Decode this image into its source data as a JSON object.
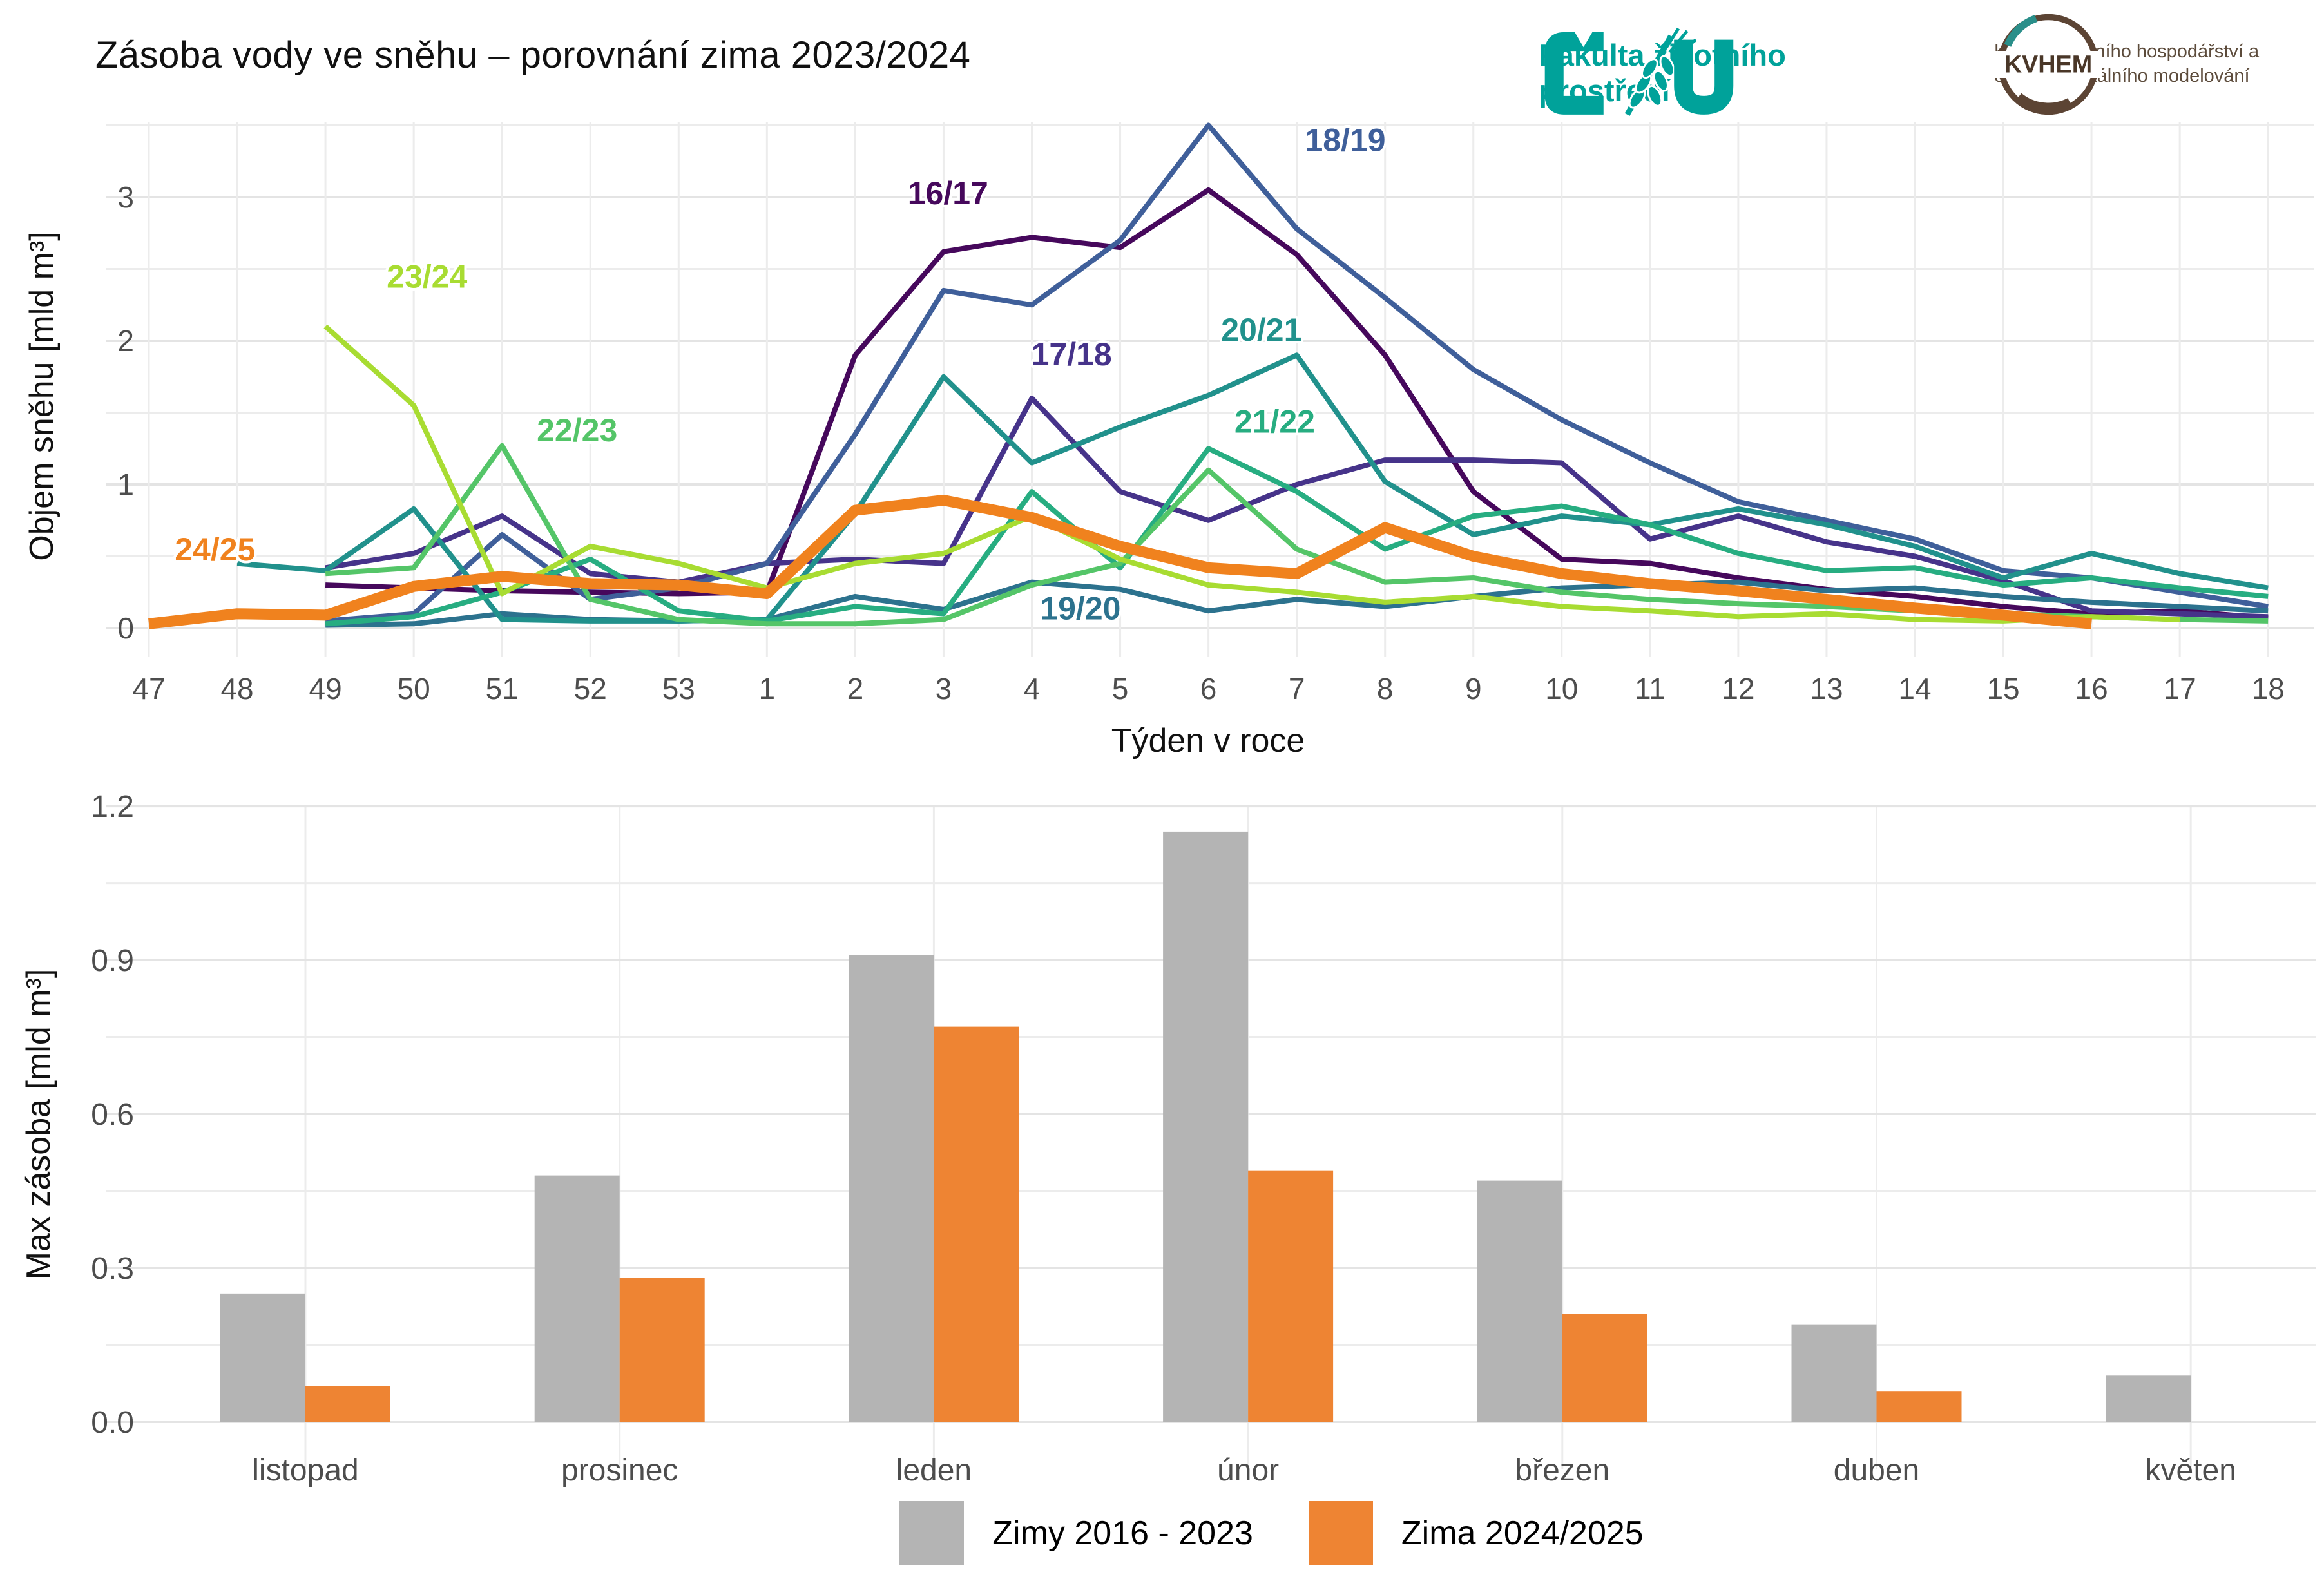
{
  "title": "Zásoba vody ve sněhu – porovnání zima 2023/2024",
  "header": {
    "czu": {
      "faculty": "Fakulta životního prostředí"
    },
    "kvhem": {
      "abbr": "KVHEM",
      "department": "Katedra vodního hospodářství a environmentálního modelování"
    }
  },
  "colors": {
    "teal_brand": "#00A29A",
    "brown": "#5C4B3B",
    "grid_major": "#E4E4E4",
    "grid_minor": "#ECECEC",
    "tick_text": "#4D4D4D",
    "bar_gray": "#B4B4B4",
    "bar_orange": "#EE8433"
  },
  "chart_data": [
    {
      "type": "line",
      "title": "Zásoba vody ve sněhu – porovnání zima 2023/2024",
      "xlabel": "Týden v roce",
      "ylabel": "Objem sněhu [mld m³]",
      "x_ticks": [
        "47",
        "48",
        "49",
        "50",
        "51",
        "52",
        "53",
        "1",
        "2",
        "3",
        "4",
        "5",
        "6",
        "7",
        "8",
        "9",
        "10",
        "11",
        "12",
        "13",
        "14",
        "15",
        "16",
        "17",
        "18"
      ],
      "y_ticks": [
        0,
        1,
        2,
        3
      ],
      "ylim": [
        0,
        3.6
      ],
      "grid": true,
      "series": [
        {
          "name": "16/17",
          "color": "#46085C",
          "width": 8,
          "label_at": {
            "x": 9.05,
            "y": 2.95
          },
          "values": [
            null,
            null,
            0.3,
            0.28,
            0.26,
            0.25,
            0.24,
            0.25,
            1.9,
            2.62,
            2.72,
            2.65,
            3.05,
            2.6,
            1.9,
            0.95,
            0.48,
            0.45,
            0.35,
            0.27,
            0.22,
            0.15,
            0.1,
            0.12,
            0.07
          ]
        },
        {
          "name": "17/18",
          "color": "#46338A",
          "width": 8,
          "label_at": {
            "x": 10.45,
            "y": 1.83
          },
          "values": [
            null,
            null,
            0.42,
            0.52,
            0.78,
            0.38,
            0.32,
            0.45,
            0.48,
            0.45,
            1.6,
            0.95,
            0.75,
            1.0,
            1.17,
            1.17,
            1.15,
            0.62,
            0.78,
            0.6,
            0.5,
            0.33,
            0.12,
            0.1,
            0.08
          ]
        },
        {
          "name": "18/19",
          "color": "#3F5F9A",
          "width": 8,
          "label_at": {
            "x": 13.55,
            "y": 3.32
          },
          "values": [
            null,
            null,
            0.05,
            0.1,
            0.65,
            0.2,
            0.28,
            0.45,
            1.35,
            2.35,
            2.25,
            2.7,
            3.5,
            2.78,
            2.3,
            1.8,
            1.45,
            1.15,
            0.88,
            0.75,
            0.62,
            0.4,
            0.35,
            0.25,
            0.15
          ]
        },
        {
          "name": "19/20",
          "color": "#2C728E",
          "width": 8,
          "label_at": {
            "x": 10.55,
            "y": 0.06
          },
          "values": [
            null,
            null,
            0.02,
            0.03,
            0.1,
            0.06,
            0.05,
            0.06,
            0.22,
            0.13,
            0.32,
            0.27,
            0.12,
            0.2,
            0.15,
            0.22,
            0.28,
            0.3,
            0.32,
            0.26,
            0.28,
            0.22,
            0.18,
            0.15,
            0.12
          ]
        },
        {
          "name": "20/21",
          "color": "#21918C",
          "width": 8,
          "label_at": {
            "x": 12.6,
            "y": 2.0
          },
          "values": [
            null,
            0.45,
            0.4,
            0.83,
            0.06,
            0.05,
            0.05,
            0.06,
            0.8,
            1.75,
            1.15,
            1.4,
            1.62,
            1.9,
            1.02,
            0.65,
            0.78,
            0.72,
            0.83,
            0.72,
            0.57,
            0.35,
            0.52,
            0.38,
            0.28
          ]
        },
        {
          "name": "21/22",
          "color": "#27AD81",
          "width": 8,
          "label_at": {
            "x": 12.75,
            "y": 1.36
          },
          "values": [
            null,
            null,
            0.03,
            0.08,
            0.25,
            0.48,
            0.12,
            0.05,
            0.15,
            0.1,
            0.95,
            0.42,
            1.25,
            0.95,
            0.55,
            0.78,
            0.85,
            0.72,
            0.52,
            0.4,
            0.42,
            0.3,
            0.35,
            0.28,
            0.22
          ]
        },
        {
          "name": "22/23",
          "color": "#54C568",
          "width": 8,
          "label_at": {
            "x": 4.85,
            "y": 1.3
          },
          "values": [
            null,
            null,
            0.38,
            0.42,
            1.27,
            0.2,
            0.06,
            0.03,
            0.03,
            0.06,
            0.3,
            0.45,
            1.1,
            0.55,
            0.32,
            0.35,
            0.25,
            0.2,
            0.17,
            0.15,
            0.12,
            0.1,
            0.08,
            0.06,
            0.05
          ]
        },
        {
          "name": "23/24",
          "color": "#A8DC32",
          "width": 8,
          "label_at": {
            "x": 3.15,
            "y": 2.37
          },
          "values": [
            null,
            null,
            2.1,
            1.55,
            0.24,
            0.57,
            0.45,
            0.28,
            0.45,
            0.52,
            0.78,
            0.48,
            0.3,
            0.25,
            0.18,
            0.22,
            0.15,
            0.12,
            0.08,
            0.1,
            0.06,
            0.05,
            0.08,
            0.06,
            null
          ]
        },
        {
          "name": "24/25",
          "color": "#F0821E",
          "width": 17,
          "label_at": {
            "x": 0.75,
            "y": 0.47
          },
          "values": [
            0.03,
            0.1,
            0.09,
            0.29,
            0.36,
            0.31,
            0.3,
            0.24,
            0.82,
            0.89,
            0.77,
            0.57,
            0.42,
            0.38,
            0.7,
            0.5,
            0.38,
            0.31,
            0.26,
            0.2,
            0.14,
            0.09,
            0.03,
            null,
            null
          ]
        }
      ]
    },
    {
      "type": "bar",
      "xlabel": "",
      "ylabel": "Max zásoba [mld m³]",
      "categories": [
        "listopad",
        "prosinec",
        "leden",
        "únor",
        "březen",
        "duben",
        "květen"
      ],
      "y_ticks": [
        "0.0",
        "0.3",
        "0.6",
        "0.9",
        "1.2"
      ],
      "ylim": [
        0,
        1.25
      ],
      "legend_position": "bottom",
      "series": [
        {
          "name": "Zimy 2016 - 2023",
          "color": "#B4B4B4",
          "values": [
            0.25,
            0.48,
            0.91,
            1.15,
            0.47,
            0.19,
            0.09
          ]
        },
        {
          "name": "Zima 2024/2025",
          "color": "#EE8433",
          "values": [
            0.07,
            0.28,
            0.77,
            0.49,
            0.21,
            0.06,
            null
          ]
        }
      ]
    }
  ],
  "legend": {
    "items": [
      {
        "label": "Zimy 2016 - 2023",
        "color": "#B4B4B4"
      },
      {
        "label": "Zima 2024/2025",
        "color": "#EE8433"
      }
    ]
  }
}
